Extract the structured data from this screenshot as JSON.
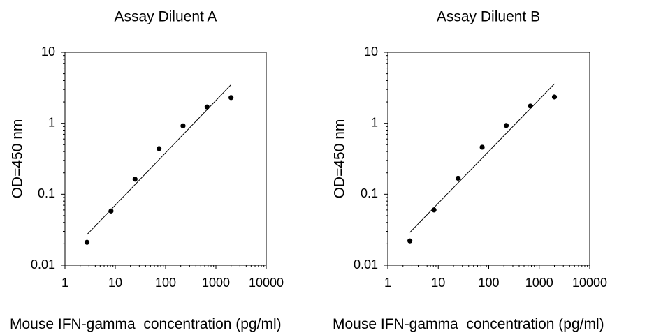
{
  "chart_data": [
    {
      "type": "scatter",
      "title": "Assay Diluent A",
      "xlabel": "Mouse IFN-gamma  concentration (pg/ml)",
      "ylabel": "OD=450 nm",
      "x_scale": "log",
      "y_scale": "log",
      "xlim": [
        1,
        10000
      ],
      "ylim": [
        0.01,
        10
      ],
      "x_ticks": [
        "1",
        "10",
        "100",
        "1000",
        "10000"
      ],
      "y_ticks": [
        "0.01",
        "0.1",
        "1",
        "10"
      ],
      "grid": false,
      "legend": "none",
      "points": [
        {
          "x": 2.74,
          "y": 0.021
        },
        {
          "x": 8.23,
          "y": 0.058
        },
        {
          "x": 24.7,
          "y": 0.163
        },
        {
          "x": 74.1,
          "y": 0.44
        },
        {
          "x": 222,
          "y": 0.92
        },
        {
          "x": 667,
          "y": 1.7
        },
        {
          "x": 2000,
          "y": 2.3
        }
      ],
      "fit_line": [
        {
          "x": 2.74,
          "y": 0.027
        },
        {
          "x": 2000,
          "y": 3.5
        }
      ]
    },
    {
      "type": "scatter",
      "title": "Assay Diluent B",
      "xlabel": "Mouse IFN-gamma  concentration (pg/ml)",
      "ylabel": "OD=450 nm",
      "x_scale": "log",
      "y_scale": "log",
      "xlim": [
        1,
        10000
      ],
      "ylim": [
        0.01,
        10
      ],
      "x_ticks": [
        "1",
        "10",
        "100",
        "1000",
        "10000"
      ],
      "y_ticks": [
        "0.01",
        "0.1",
        "1",
        "10"
      ],
      "grid": false,
      "legend": "none",
      "points": [
        {
          "x": 2.74,
          "y": 0.022
        },
        {
          "x": 8.23,
          "y": 0.06
        },
        {
          "x": 24.7,
          "y": 0.168
        },
        {
          "x": 74.1,
          "y": 0.46
        },
        {
          "x": 222,
          "y": 0.93
        },
        {
          "x": 667,
          "y": 1.75
        },
        {
          "x": 2000,
          "y": 2.35
        }
      ],
      "fit_line": [
        {
          "x": 2.74,
          "y": 0.029
        },
        {
          "x": 2000,
          "y": 3.6
        }
      ]
    }
  ]
}
